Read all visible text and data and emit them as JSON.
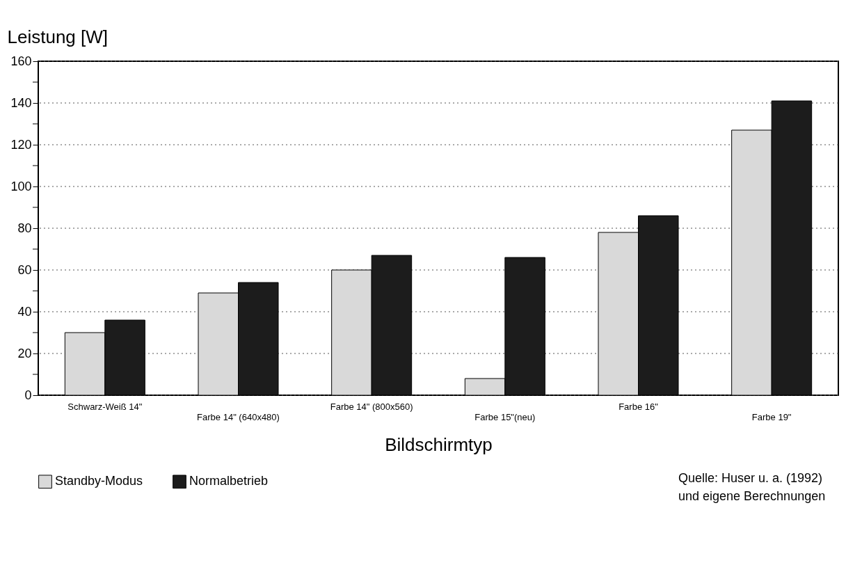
{
  "chart_data": {
    "type": "bar",
    "xlabel": "Bildschirmtyp",
    "ylabel": "Leistung [W]",
    "categories": [
      "Schwarz-Weiß 14\"",
      "Farbe 14\" (640x480)",
      "Farbe 14\" (800x560)",
      "Farbe 15\"(neu)",
      "Farbe 16\"",
      "Farbe 19\""
    ],
    "series": [
      {
        "name": "Standby-Modus",
        "color": "#d9d9d9",
        "values": [
          30,
          49,
          60,
          8,
          78,
          127
        ]
      },
      {
        "name": "Normalbetrieb",
        "color": "#1c1c1c",
        "values": [
          36,
          54,
          67,
          66,
          86,
          141
        ]
      }
    ],
    "ylim": [
      0,
      160
    ],
    "yticks": [
      0,
      {
        "value": 10,
        "label": null
      },
      20,
      {
        "value": 30,
        "label": null
      },
      40,
      {
        "value": 50,
        "label": null
      },
      60,
      {
        "value": 70,
        "label": null
      },
      80,
      {
        "value": 90,
        "label": null
      },
      100,
      {
        "value": 110,
        "label": null
      },
      120,
      {
        "value": 130,
        "label": null
      },
      140,
      {
        "value": 150,
        "label": null
      },
      160
    ],
    "grid": "y",
    "legend": "bottom",
    "annotations": [
      "Quelle: Huser u. a. (1992)",
      "und eigene Berechnungen"
    ]
  }
}
